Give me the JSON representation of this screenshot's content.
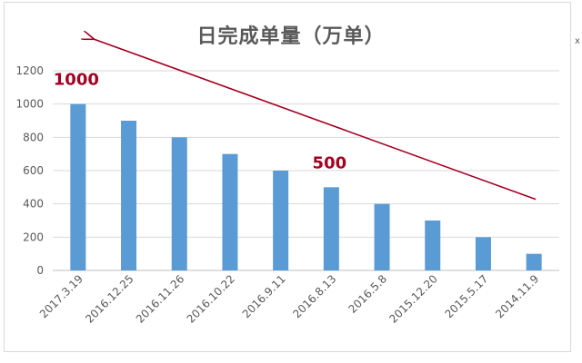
{
  "chart_data": {
    "type": "bar",
    "title": "日完成单量（万单）",
    "xlabel": "",
    "ylabel": "",
    "categories": [
      "2017.3.19",
      "2016.12.25",
      "2016.11.26",
      "2016.10.22",
      "2016.9.11",
      "2016.8.13",
      "2016.5.8",
      "2015.12.20",
      "2015.5.17",
      "2014.11.9"
    ],
    "values": [
      1000,
      900,
      800,
      700,
      600,
      500,
      400,
      300,
      200,
      100
    ],
    "ylim": [
      0,
      1200
    ],
    "yticks": [
      0,
      200,
      400,
      600,
      800,
      1000,
      1200
    ],
    "grid": true,
    "legend": "none",
    "bar_color": "#5b9bd5",
    "annotations": [
      {
        "text": "1000",
        "category": "2017.3.19"
      },
      {
        "text": "500",
        "category": "2016.8.13"
      }
    ],
    "trend_arrow": {
      "from_category": "2014.11.9",
      "to_category": "2017.3.19",
      "color": "#a50021"
    }
  },
  "edge_glyph": "x"
}
